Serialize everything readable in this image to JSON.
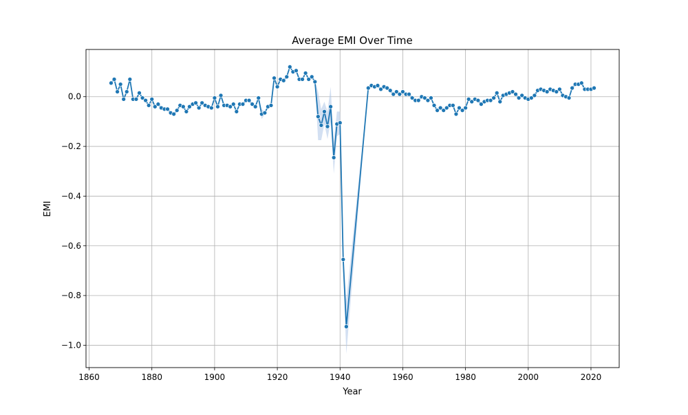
{
  "chart_data": {
    "type": "line",
    "title": "Average EMI Over Time",
    "xlabel": "Year",
    "ylabel": "EMI",
    "xlim": [
      1859,
      2029
    ],
    "ylim": [
      -1.09,
      0.19
    ],
    "xticks": [
      1860,
      1880,
      1900,
      1920,
      1940,
      1960,
      1980,
      2000,
      2020
    ],
    "xtick_labels": [
      "1860",
      "1880",
      "1900",
      "1920",
      "1940",
      "1960",
      "1980",
      "2000",
      "2020"
    ],
    "yticks": [
      -1.0,
      -0.8,
      -0.6,
      -0.4,
      -0.2,
      0.0
    ],
    "ytick_labels": [
      "−1.0",
      "−0.8",
      "−0.6",
      "−0.4",
      "−0.2",
      "0.0"
    ],
    "grid": true,
    "legend": "none",
    "line_color": "#1f77b4",
    "band_color": "#aec7e8",
    "x": [
      1867,
      1868,
      1869,
      1870,
      1871,
      1872,
      1873,
      1874,
      1875,
      1876,
      1877,
      1878,
      1879,
      1880,
      1881,
      1882,
      1883,
      1884,
      1885,
      1886,
      1887,
      1888,
      1889,
      1890,
      1891,
      1892,
      1893,
      1894,
      1895,
      1896,
      1897,
      1898,
      1899,
      1900,
      1901,
      1902,
      1903,
      1904,
      1905,
      1906,
      1907,
      1908,
      1909,
      1910,
      1911,
      1912,
      1913,
      1914,
      1915,
      1916,
      1917,
      1918,
      1919,
      1920,
      1921,
      1922,
      1923,
      1924,
      1925,
      1926,
      1927,
      1928,
      1929,
      1930,
      1931,
      1932,
      1933,
      1934,
      1935,
      1936,
      1937,
      1938,
      1939,
      1940,
      1941,
      1942,
      1949,
      1950,
      1951,
      1952,
      1953,
      1954,
      1955,
      1956,
      1957,
      1958,
      1959,
      1960,
      1961,
      1962,
      1963,
      1964,
      1965,
      1966,
      1967,
      1968,
      1969,
      1970,
      1971,
      1972,
      1973,
      1974,
      1975,
      1976,
      1977,
      1978,
      1979,
      1980,
      1981,
      1982,
      1983,
      1984,
      1985,
      1986,
      1987,
      1988,
      1989,
      1990,
      1991,
      1992,
      1993,
      1994,
      1995,
      1996,
      1997,
      1998,
      1999,
      2000,
      2001,
      2002,
      2003,
      2004,
      2005,
      2006,
      2007,
      2008,
      2009,
      2010,
      2011,
      2012,
      2013,
      2014,
      2015,
      2016,
      2017,
      2018,
      2019,
      2020,
      2021
    ],
    "y": [
      0.055,
      0.07,
      0.02,
      0.05,
      -0.01,
      0.02,
      0.07,
      -0.01,
      -0.01,
      0.015,
      -0.005,
      -0.015,
      -0.035,
      -0.01,
      -0.04,
      -0.03,
      -0.045,
      -0.05,
      -0.05,
      -0.065,
      -0.07,
      -0.055,
      -0.035,
      -0.04,
      -0.06,
      -0.04,
      -0.03,
      -0.025,
      -0.045,
      -0.025,
      -0.035,
      -0.04,
      -0.045,
      -0.005,
      -0.04,
      0.005,
      -0.035,
      -0.035,
      -0.04,
      -0.03,
      -0.06,
      -0.03,
      -0.03,
      -0.015,
      -0.015,
      -0.03,
      -0.04,
      -0.005,
      -0.07,
      -0.065,
      -0.04,
      -0.035,
      0.075,
      0.04,
      0.07,
      0.065,
      0.08,
      0.12,
      0.1,
      0.105,
      0.07,
      0.07,
      0.095,
      0.07,
      0.08,
      0.06,
      -0.08,
      -0.115,
      -0.06,
      -0.12,
      -0.04,
      -0.245,
      -0.11,
      -0.105,
      -0.655,
      -0.925,
      0.035,
      0.045,
      0.04,
      0.045,
      0.03,
      0.04,
      0.035,
      0.025,
      0.01,
      0.02,
      0.01,
      0.02,
      0.01,
      0.01,
      -0.005,
      -0.015,
      -0.015,
      0.0,
      -0.005,
      -0.015,
      -0.005,
      -0.035,
      -0.055,
      -0.045,
      -0.055,
      -0.045,
      -0.035,
      -0.035,
      -0.07,
      -0.045,
      -0.055,
      -0.045,
      -0.01,
      -0.02,
      -0.01,
      -0.015,
      -0.03,
      -0.02,
      -0.015,
      -0.015,
      -0.005,
      0.015,
      -0.02,
      0.005,
      0.01,
      0.015,
      0.02,
      0.01,
      -0.005,
      0.005,
      -0.005,
      -0.01,
      -0.005,
      0.005,
      0.025,
      0.03,
      0.025,
      0.02,
      0.03,
      0.025,
      0.02,
      0.03,
      0.005,
      0.0,
      -0.005,
      0.035,
      0.05,
      0.05,
      0.055,
      0.03,
      0.03,
      0.03,
      0.035
    ],
    "ci_low_x": [
      1932,
      1933,
      1934,
      1935,
      1936,
      1937,
      1938,
      1939,
      1940,
      1941,
      1942,
      1949
    ],
    "ci_low": [
      0.055,
      -0.175,
      -0.175,
      -0.11,
      -0.17,
      -0.1,
      -0.31,
      -0.16,
      -0.15,
      -0.7,
      -1.035,
      0.03
    ],
    "ci_high": [
      0.065,
      0.02,
      -0.05,
      -0.02,
      -0.06,
      0.04,
      -0.18,
      -0.06,
      -0.06,
      -0.61,
      -0.82,
      0.04
    ],
    "ci_small": 0.012,
    "ci_small_extra": {
      "1915": [
        -0.09,
        -0.05
      ]
    }
  }
}
